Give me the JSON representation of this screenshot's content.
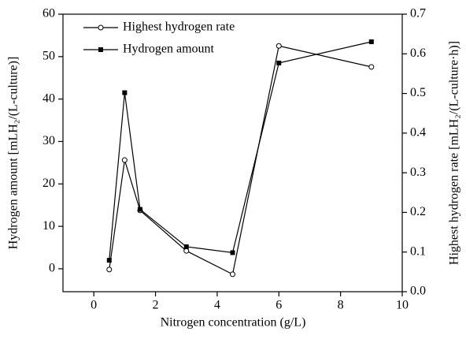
{
  "chart_data": {
    "type": "line",
    "x_label": "Nitrogen concentration (g/L)",
    "y_label": "Hydrogen amount [mLH₂/(L-culture)]",
    "y2_label": "Highest hydrogen rate [mLH₂/(L-culture·h)]",
    "x": [
      0.5,
      1,
      1.5,
      3,
      4.5,
      6,
      9
    ],
    "series": [
      {
        "name": "Highest hydrogen rate",
        "color": "#000000",
        "marker": "open-circle",
        "axis": "y2",
        "values": [
          0.056,
          0.332,
          0.205,
          0.103,
          0.044,
          0.62,
          0.567
        ]
      },
      {
        "name": "Hydrogen amount",
        "color": "#000000",
        "marker": "filled-square",
        "values": [
          2,
          41.5,
          14,
          5.2,
          3.8,
          48.5,
          53.5
        ]
      }
    ],
    "xlim": [
      -1,
      10
    ],
    "xticks": [
      0,
      2,
      4,
      6,
      8,
      10
    ],
    "ylim": [
      -5.4,
      60
    ],
    "yticks": [
      0,
      10,
      20,
      30,
      40,
      50,
      60
    ],
    "y2lim": [
      0,
      0.7
    ],
    "y2ticks": [
      {
        "value": 0,
        "label": "0.0"
      },
      0.1,
      0.2,
      0.3,
      0.4,
      0.5,
      0.6,
      0.7
    ],
    "legend": "upper left"
  }
}
